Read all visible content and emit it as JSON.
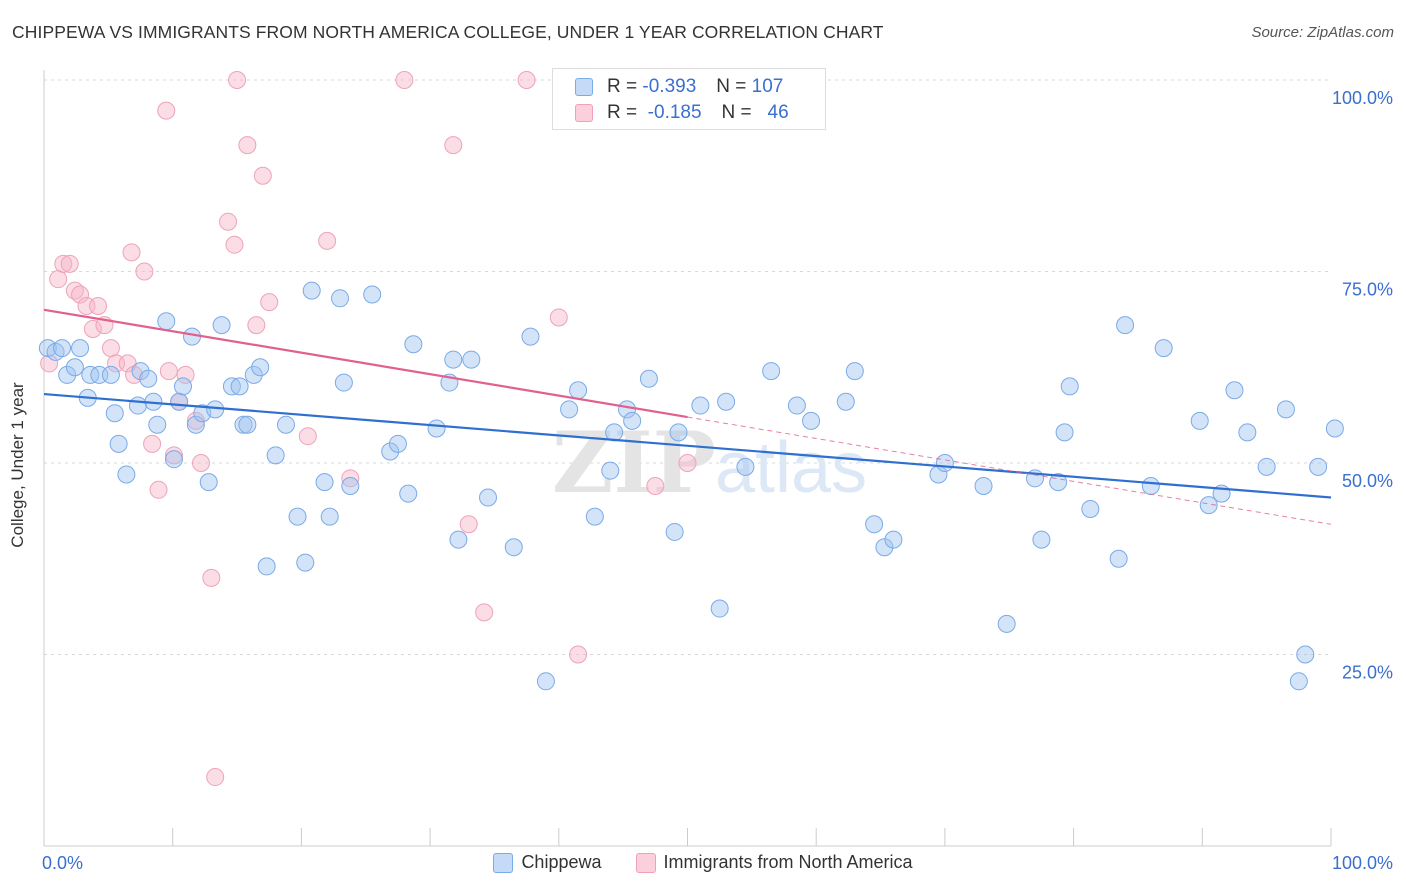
{
  "title": "CHIPPEWA VS IMMIGRANTS FROM NORTH AMERICA COLLEGE, UNDER 1 YEAR CORRELATION CHART",
  "source": "Source: ZipAtlas.com",
  "watermark": {
    "zip": "ZIP",
    "atlas": "atlas"
  },
  "colors": {
    "blue": "#7aaae8",
    "blue_line": "#2f6fd0",
    "pink": "#f0a0b8",
    "pink_line": "#e06090",
    "axis_text": "#3a6fd0"
  },
  "stats": [
    {
      "r_label": "R =",
      "r": "-0.393",
      "n_label": "N =",
      "n": "107",
      "series": "blue"
    },
    {
      "r_label": "R =",
      "r": "-0.185",
      "n_label": "N =",
      "n": "46",
      "series": "pink"
    }
  ],
  "chart_data": {
    "type": "scatter",
    "ylabel": "College, Under 1 year",
    "xlim": [
      0,
      100
    ],
    "ylim": [
      0,
      100
    ],
    "x_tick_labels": [
      "0.0%",
      "100.0%"
    ],
    "y_ticks": [
      25,
      50,
      75,
      100
    ],
    "y_tick_labels": [
      "25.0%",
      "50.0%",
      "75.0%",
      "100.0%"
    ],
    "legend": [
      "Chippewa",
      "Immigrants from North America"
    ],
    "series": [
      {
        "name": "Chippewa",
        "trend": [
          [
            0,
            59.0
          ],
          [
            100,
            45.5
          ]
        ],
        "points": [
          [
            0.3,
            65
          ],
          [
            0.9,
            64.5
          ],
          [
            1.4,
            65
          ],
          [
            1.8,
            61.5
          ],
          [
            2.4,
            62.5
          ],
          [
            2.8,
            65
          ],
          [
            3.4,
            58.5
          ],
          [
            3.6,
            61.5
          ],
          [
            4.3,
            61.5
          ],
          [
            5.2,
            61.5
          ],
          [
            5.5,
            56.5
          ],
          [
            5.8,
            52.5
          ],
          [
            6.4,
            48.5
          ],
          [
            7.3,
            57.5
          ],
          [
            7.5,
            62
          ],
          [
            8.1,
            61
          ],
          [
            8.5,
            58
          ],
          [
            8.8,
            55
          ],
          [
            9.5,
            68.5
          ],
          [
            10.1,
            50.5
          ],
          [
            10.5,
            58
          ],
          [
            10.8,
            60
          ],
          [
            11.5,
            66.5
          ],
          [
            11.8,
            55
          ],
          [
            12.3,
            56.5
          ],
          [
            12.8,
            47.5
          ],
          [
            13.3,
            57
          ],
          [
            13.8,
            68
          ],
          [
            14.6,
            60
          ],
          [
            15.2,
            60
          ],
          [
            15.5,
            55
          ],
          [
            15.8,
            55
          ],
          [
            16.3,
            61.5
          ],
          [
            16.8,
            62.5
          ],
          [
            17.3,
            36.5
          ],
          [
            18.0,
            51
          ],
          [
            18.8,
            55
          ],
          [
            19.7,
            43
          ],
          [
            20.3,
            37
          ],
          [
            20.8,
            72.5
          ],
          [
            21.8,
            47.5
          ],
          [
            22.2,
            43
          ],
          [
            23.0,
            71.5
          ],
          [
            23.3,
            60.5
          ],
          [
            23.8,
            47
          ],
          [
            25.5,
            72
          ],
          [
            26.9,
            51.5
          ],
          [
            27.5,
            52.5
          ],
          [
            28.3,
            46
          ],
          [
            28.7,
            65.5
          ],
          [
            30.5,
            54.5
          ],
          [
            31.5,
            60.5
          ],
          [
            31.8,
            63.5
          ],
          [
            32.2,
            40
          ],
          [
            33.2,
            63.5
          ],
          [
            34.5,
            45.5
          ],
          [
            36.5,
            39
          ],
          [
            37.8,
            66.5
          ],
          [
            39.0,
            21.5
          ],
          [
            40.8,
            57
          ],
          [
            41.5,
            59.5
          ],
          [
            42.8,
            43
          ],
          [
            44.0,
            49
          ],
          [
            44.3,
            54
          ],
          [
            45.3,
            57
          ],
          [
            45.7,
            55.5
          ],
          [
            47.0,
            61
          ],
          [
            49.0,
            41
          ],
          [
            49.3,
            54
          ],
          [
            51.0,
            57.5
          ],
          [
            52.5,
            31
          ],
          [
            53.0,
            58
          ],
          [
            54.5,
            49.5
          ],
          [
            56.5,
            62
          ],
          [
            58.5,
            57.5
          ],
          [
            59.6,
            55.5
          ],
          [
            62.3,
            58
          ],
          [
            63.0,
            62
          ],
          [
            64.5,
            42
          ],
          [
            65.3,
            39
          ],
          [
            66.0,
            40
          ],
          [
            69.5,
            48.5
          ],
          [
            70.0,
            50
          ],
          [
            73.0,
            47
          ],
          [
            74.8,
            29
          ],
          [
            77.0,
            48
          ],
          [
            77.5,
            40
          ],
          [
            78.8,
            47.5
          ],
          [
            79.3,
            54
          ],
          [
            79.7,
            60
          ],
          [
            81.3,
            44
          ],
          [
            83.5,
            37.5
          ],
          [
            84.0,
            68
          ],
          [
            86.0,
            47
          ],
          [
            87.0,
            65
          ],
          [
            89.8,
            55.5
          ],
          [
            90.5,
            44.5
          ],
          [
            91.5,
            46
          ],
          [
            92.5,
            59.5
          ],
          [
            93.5,
            54
          ],
          [
            95.0,
            49.5
          ],
          [
            96.5,
            57
          ],
          [
            97.5,
            21.5
          ],
          [
            98.0,
            25
          ],
          [
            99.0,
            49.5
          ],
          [
            100.3,
            54.5
          ]
        ]
      },
      {
        "name": "Immigrants from North America",
        "trend": [
          [
            0,
            70.0
          ],
          [
            50,
            56.0
          ]
        ],
        "trend_dashed": [
          [
            50,
            56.0
          ],
          [
            100,
            42.0
          ]
        ],
        "points": [
          [
            0.4,
            63
          ],
          [
            1.1,
            74
          ],
          [
            1.5,
            76
          ],
          [
            2.0,
            76
          ],
          [
            2.4,
            72.5
          ],
          [
            2.8,
            72
          ],
          [
            3.3,
            70.5
          ],
          [
            3.8,
            67.5
          ],
          [
            4.2,
            70.5
          ],
          [
            4.7,
            68
          ],
          [
            5.2,
            65
          ],
          [
            5.6,
            63
          ],
          [
            6.5,
            63
          ],
          [
            6.8,
            77.5
          ],
          [
            7.0,
            61.5
          ],
          [
            7.8,
            75
          ],
          [
            8.4,
            52.5
          ],
          [
            8.9,
            46.5
          ],
          [
            9.5,
            96
          ],
          [
            9.7,
            62
          ],
          [
            10.1,
            51
          ],
          [
            10.5,
            58
          ],
          [
            11.0,
            61.5
          ],
          [
            11.8,
            55.5
          ],
          [
            12.2,
            50
          ],
          [
            13.0,
            35
          ],
          [
            13.3,
            9
          ],
          [
            14.3,
            81.5
          ],
          [
            14.8,
            78.5
          ],
          [
            15.0,
            100
          ],
          [
            15.8,
            91.5
          ],
          [
            16.5,
            68
          ],
          [
            17.0,
            87.5
          ],
          [
            17.5,
            71
          ],
          [
            20.5,
            53.5
          ],
          [
            22.0,
            79
          ],
          [
            23.8,
            48
          ],
          [
            28.0,
            100
          ],
          [
            31.8,
            91.5
          ],
          [
            33.0,
            42
          ],
          [
            34.2,
            30.5
          ],
          [
            37.5,
            100
          ],
          [
            40.0,
            69
          ],
          [
            41.5,
            25
          ],
          [
            47.5,
            47
          ],
          [
            50.0,
            50
          ]
        ]
      }
    ]
  }
}
